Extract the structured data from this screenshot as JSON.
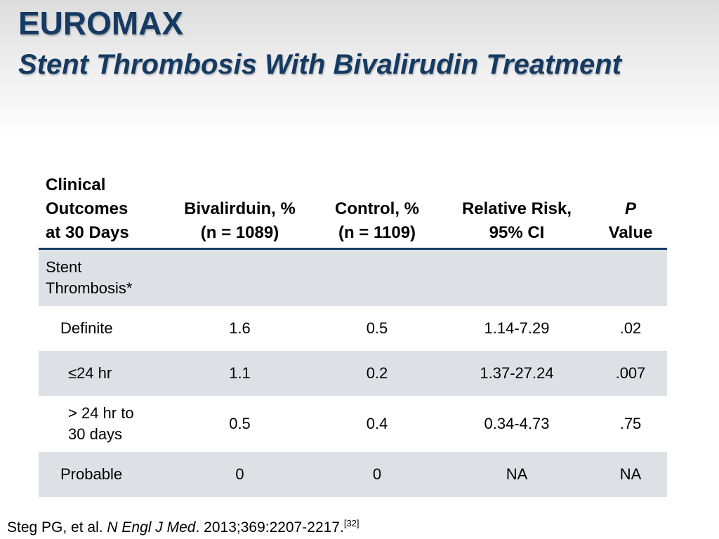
{
  "slide": {
    "title": "EUROMAX",
    "subtitle": "Stent Thrombosis With Bivalirudin Treatment"
  },
  "table": {
    "headers": {
      "outcome_l1": "Clinical",
      "outcome_l2": "Outcomes",
      "outcome_l3": "at 30 Days",
      "biv_l1": "Bivalirduin, %",
      "biv_l2": "(n = 1089)",
      "ctrl_l1": "Control, %",
      "ctrl_l2": "(n = 1109)",
      "rr_l1": "Relative Risk,",
      "rr_l2": "95% CI",
      "p_l1": "P",
      "p_l2": "Value"
    },
    "section": {
      "label_l1": "Stent",
      "label_l2": "Thrombosis*"
    },
    "rows": [
      {
        "label": "Definite",
        "biv": "1.6",
        "ctrl": "0.5",
        "rr": "1.14-7.29",
        "p": ".02"
      },
      {
        "label": "≤24 hr",
        "biv": "1.1",
        "ctrl": "0.2",
        "rr": "1.37-27.24",
        "p": ".007"
      },
      {
        "label_l1": "> 24 hr to",
        "label_l2": "30 days",
        "biv": "0.5",
        "ctrl": "0.4",
        "rr": "0.34-4.73",
        "p": ".75"
      },
      {
        "label": "Probable",
        "biv": "0",
        "ctrl": "0",
        "rr": "NA",
        "p": "NA"
      }
    ]
  },
  "citation": {
    "authors": "Steg PG, et al.",
    "journal": "N Engl J Med",
    "details": ". 2013;369:2207-2217.",
    "ref": "[32]"
  },
  "colors": {
    "title": "#153a63",
    "rule": "#153a63",
    "shade": "#dde1e5"
  }
}
